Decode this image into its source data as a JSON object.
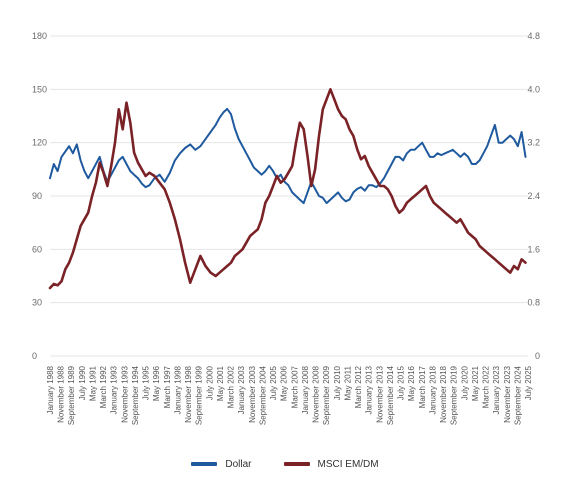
{
  "chart_data": {
    "type": "line",
    "title": "",
    "xlabel": "",
    "ylabel": "",
    "ylim": [
      0,
      180
    ],
    "y2lim": [
      0,
      4.8
    ],
    "y_ticks": [
      "0",
      "30",
      "60",
      "90",
      "120",
      "150",
      "180"
    ],
    "y2_ticks": [
      "0",
      "0.8",
      "1.6",
      "2.4",
      "3.2",
      "4.0",
      "4.8"
    ],
    "grid": true,
    "legend_position": "bottom-center",
    "x_range": [
      1988.0,
      2025.5
    ],
    "x_tick_labels": [
      "January 1988",
      "November 1988",
      "September 1989",
      "July 1990",
      "May 1991",
      "March 1992",
      "January 1993",
      "November 1993",
      "September 1994",
      "July 1995",
      "May 1996",
      "March 1997",
      "January 1998",
      "November 1998",
      "September 1999",
      "July 2000",
      "May 2001",
      "March 2002",
      "January 2003",
      "November 2003",
      "September 2004",
      "July 2005",
      "May 2006",
      "March 2007",
      "January 2008",
      "November 2008",
      "September 2009",
      "July 2010",
      "May 2011",
      "March 2012",
      "January 2013",
      "November 2013",
      "September 2014",
      "July 2015",
      "May 2016",
      "March 2017",
      "January 2018",
      "November 2018",
      "September 2019",
      "July 2020",
      "May 2021",
      "March 2022",
      "January 2023",
      "November 2023",
      "September 2024",
      "July 2025"
    ],
    "series": [
      {
        "name": "Dollar",
        "axis": "left",
        "color": "#1f5a9e",
        "x": [
          1988.0,
          1988.3,
          1988.6,
          1988.9,
          1989.2,
          1989.5,
          1989.8,
          1990.1,
          1990.4,
          1990.7,
          1991.0,
          1991.3,
          1991.6,
          1991.9,
          1992.2,
          1992.5,
          1992.8,
          1993.1,
          1993.4,
          1993.7,
          1994.0,
          1994.3,
          1994.6,
          1994.9,
          1995.2,
          1995.5,
          1995.8,
          1996.2,
          1996.6,
          1997.0,
          1997.4,
          1997.8,
          1998.2,
          1998.6,
          1999.0,
          1999.4,
          1999.8,
          2000.2,
          2000.6,
          2001.0,
          2001.3,
          2001.6,
          2001.9,
          2002.2,
          2002.5,
          2002.8,
          2003.1,
          2003.4,
          2003.7,
          2004.0,
          2004.3,
          2004.6,
          2004.9,
          2005.2,
          2005.5,
          2005.8,
          2006.1,
          2006.4,
          2006.7,
          2007.0,
          2007.3,
          2007.6,
          2007.9,
          2008.2,
          2008.5,
          2008.8,
          2009.1,
          2009.4,
          2009.7,
          2010.0,
          2010.3,
          2010.6,
          2010.9,
          2011.2,
          2011.5,
          2011.8,
          2012.1,
          2012.4,
          2012.7,
          2013.0,
          2013.3,
          2013.6,
          2013.9,
          2014.2,
          2014.5,
          2014.8,
          2015.1,
          2015.4,
          2015.7,
          2016.0,
          2016.3,
          2016.6,
          2016.9,
          2017.2,
          2017.5,
          2017.8,
          2018.1,
          2018.4,
          2018.7,
          2019.0,
          2019.3,
          2019.6,
          2019.9,
          2020.2,
          2020.5,
          2020.8,
          2021.1,
          2021.4,
          2021.7,
          2022.0,
          2022.3,
          2022.6,
          2022.9,
          2023.2,
          2023.5,
          2023.8,
          2024.1,
          2024.4,
          2024.7,
          2025.0,
          2025.3
        ],
        "values": [
          100,
          108,
          104,
          112,
          115,
          118,
          114,
          119,
          110,
          104,
          100,
          104,
          108,
          112,
          104,
          98,
          102,
          106,
          110,
          112,
          108,
          104,
          102,
          100,
          97,
          95,
          96,
          100,
          102,
          98,
          103,
          110,
          114,
          117,
          119,
          116,
          118,
          122,
          126,
          130,
          134,
          137,
          139,
          136,
          128,
          122,
          118,
          114,
          110,
          106,
          104,
          102,
          104,
          107,
          104,
          100,
          102,
          98,
          96,
          92,
          90,
          88,
          86,
          92,
          98,
          94,
          90,
          89,
          86,
          88,
          90,
          92,
          89,
          87,
          88,
          92,
          94,
          95,
          93,
          96,
          96,
          95,
          97,
          100,
          104,
          108,
          112,
          112,
          110,
          114,
          116,
          116,
          118,
          120,
          116,
          112,
          112,
          114,
          113,
          114,
          115,
          116,
          114,
          112,
          114,
          112,
          108,
          108,
          110,
          114,
          118,
          124,
          130,
          120,
          120,
          122,
          124,
          122,
          118,
          126,
          112
        ]
      },
      {
        "name": "MSCI EM/DM",
        "axis": "right",
        "color": "#7a2226",
        "x": [
          1988.0,
          1988.3,
          1988.6,
          1988.9,
          1989.2,
          1989.5,
          1989.8,
          1990.1,
          1990.4,
          1990.7,
          1991.0,
          1991.3,
          1991.6,
          1991.9,
          1992.2,
          1992.5,
          1992.8,
          1993.1,
          1993.4,
          1993.7,
          1994.0,
          1994.3,
          1994.6,
          1994.9,
          1995.2,
          1995.5,
          1995.8,
          1996.2,
          1996.6,
          1997.0,
          1997.4,
          1997.8,
          1998.2,
          1998.6,
          1999.0,
          1999.4,
          1999.8,
          2000.2,
          2000.6,
          2001.0,
          2001.3,
          2001.6,
          2001.9,
          2002.2,
          2002.5,
          2002.8,
          2003.1,
          2003.4,
          2003.7,
          2004.0,
          2004.3,
          2004.6,
          2004.9,
          2005.2,
          2005.5,
          2005.8,
          2006.1,
          2006.4,
          2006.7,
          2007.0,
          2007.3,
          2007.6,
          2007.9,
          2008.2,
          2008.5,
          2008.8,
          2009.1,
          2009.4,
          2009.7,
          2010.0,
          2010.3,
          2010.6,
          2010.9,
          2011.2,
          2011.5,
          2011.8,
          2012.1,
          2012.4,
          2012.7,
          2013.0,
          2013.3,
          2013.6,
          2013.9,
          2014.2,
          2014.5,
          2014.8,
          2015.1,
          2015.4,
          2015.7,
          2016.0,
          2016.3,
          2016.6,
          2016.9,
          2017.2,
          2017.5,
          2017.8,
          2018.1,
          2018.4,
          2018.7,
          2019.0,
          2019.3,
          2019.6,
          2019.9,
          2020.2,
          2020.5,
          2020.8,
          2021.1,
          2021.4,
          2021.7,
          2022.0,
          2022.3,
          2022.6,
          2022.9,
          2023.2,
          2023.5,
          2023.8,
          2024.1,
          2024.4,
          2024.7,
          2025.0,
          2025.3
        ],
        "values": [
          1.02,
          1.08,
          1.06,
          1.12,
          1.3,
          1.4,
          1.55,
          1.75,
          1.95,
          2.05,
          2.15,
          2.4,
          2.6,
          2.9,
          2.75,
          2.55,
          2.85,
          3.2,
          3.7,
          3.4,
          3.8,
          3.5,
          3.05,
          2.9,
          2.8,
          2.7,
          2.75,
          2.7,
          2.6,
          2.5,
          2.3,
          2.05,
          1.75,
          1.4,
          1.1,
          1.3,
          1.5,
          1.35,
          1.25,
          1.2,
          1.25,
          1.3,
          1.35,
          1.4,
          1.5,
          1.55,
          1.6,
          1.7,
          1.8,
          1.85,
          1.9,
          2.05,
          2.3,
          2.4,
          2.55,
          2.7,
          2.6,
          2.65,
          2.75,
          2.85,
          3.2,
          3.5,
          3.4,
          3.0,
          2.55,
          2.8,
          3.3,
          3.7,
          3.85,
          4.0,
          3.85,
          3.7,
          3.6,
          3.55,
          3.4,
          3.3,
          3.1,
          2.95,
          3.0,
          2.85,
          2.75,
          2.65,
          2.55,
          2.55,
          2.5,
          2.4,
          2.25,
          2.15,
          2.2,
          2.3,
          2.35,
          2.4,
          2.45,
          2.5,
          2.55,
          2.4,
          2.3,
          2.25,
          2.2,
          2.15,
          2.1,
          2.05,
          2.0,
          2.05,
          1.95,
          1.85,
          1.8,
          1.75,
          1.65,
          1.6,
          1.55,
          1.5,
          1.45,
          1.4,
          1.35,
          1.3,
          1.25,
          1.35,
          1.3,
          1.45,
          1.4
        ]
      }
    ]
  },
  "legend": {
    "items": [
      {
        "label": "Dollar",
        "color": "#1f5a9e"
      },
      {
        "label": "MSCI EM/DM",
        "color": "#7a2226"
      }
    ]
  }
}
